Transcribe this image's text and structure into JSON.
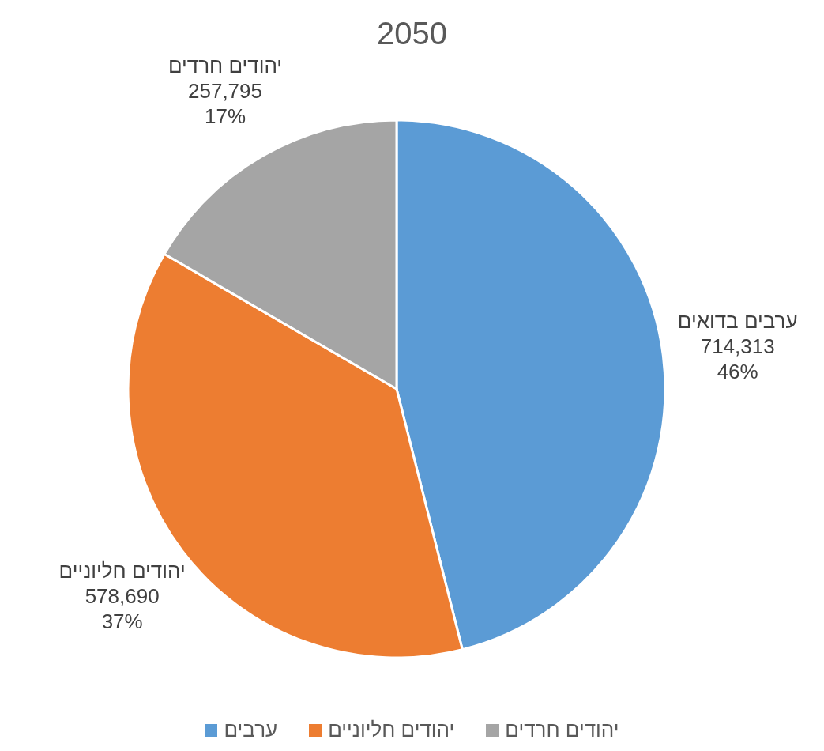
{
  "chart_data": {
    "type": "pie",
    "title": "2050",
    "categories": [
      "ערבים",
      "יהודים חליוניים",
      "יהודים חרדים"
    ],
    "values": [
      714313,
      578690,
      257795
    ],
    "colors": [
      "#5b9bd5",
      "#ed7d31",
      "#a5a5a5"
    ],
    "value_labels": [
      "ערבים בדואים\n714,313\n46%",
      "יהודים חליוניים\n578,690\n37%",
      "יהודים חרדים\n257,795\n17%"
    ],
    "legend": "bottom"
  }
}
